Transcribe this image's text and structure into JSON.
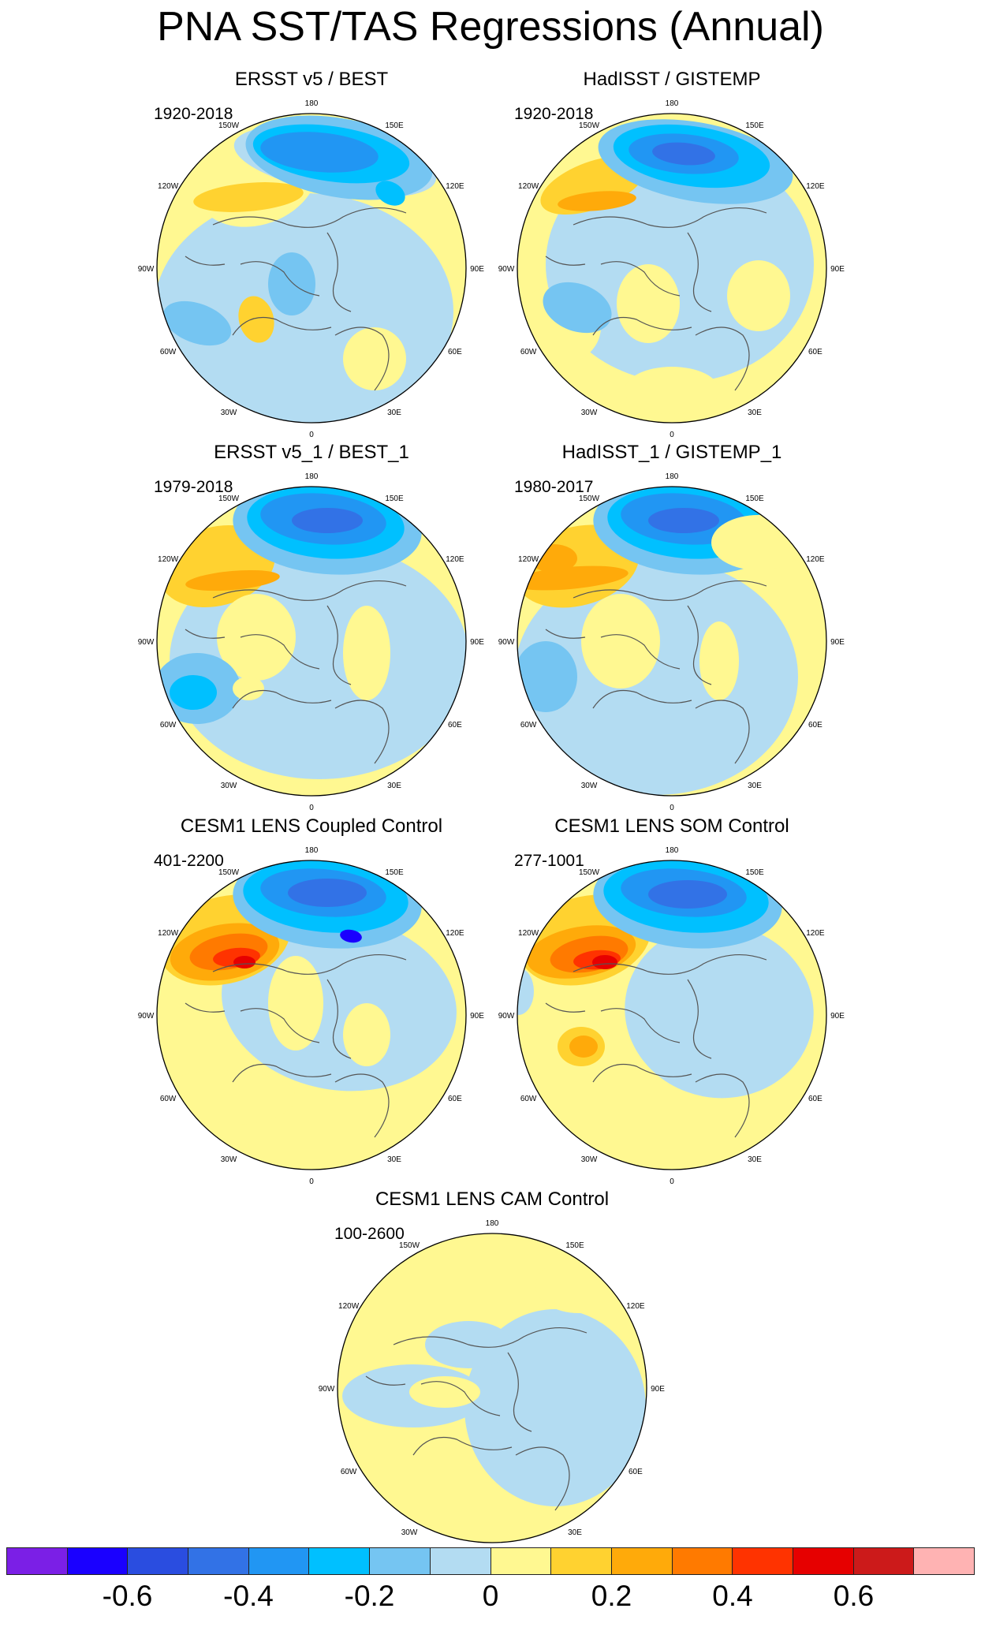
{
  "title": "PNA SST/TAS Regressions (Annual)",
  "panels": [
    {
      "title": "ERSST v5 / BEST",
      "period": "1920-2018",
      "pattern": "obs_early",
      "side": "left"
    },
    {
      "title": "HadISST / GISTEMP",
      "period": "1920-2018",
      "pattern": "obs_early_had",
      "side": "right"
    },
    {
      "title": "ERSST v5_1 / BEST_1",
      "period": "1979-2018",
      "pattern": "obs_late",
      "side": "left"
    },
    {
      "title": "HadISST_1 / GISTEMP_1",
      "period": "1980-2017",
      "pattern": "obs_late_had",
      "side": "right"
    },
    {
      "title": "CESM1 LENS Coupled Control",
      "period": "401-2200",
      "pattern": "coupled",
      "side": "left"
    },
    {
      "title": "CESM1 LENS SOM Control",
      "period": "277-1001",
      "pattern": "som",
      "side": "right"
    },
    {
      "title": "CESM1 LENS CAM Control",
      "period": "100-2600",
      "pattern": "cam",
      "side": "center"
    }
  ],
  "lon_labels": [
    "180",
    "150E",
    "120E",
    "90E",
    "60E",
    "30E",
    "0",
    "30W",
    "60W",
    "90W",
    "120W",
    "150W"
  ],
  "colorbar": {
    "colors": [
      "#7b1fe6",
      "#1a00ff",
      "#2a4de0",
      "#3272e6",
      "#2196f3",
      "#00c0ff",
      "#75c5f2",
      "#b3dcf2",
      "#fff891",
      "#ffd230",
      "#ffaa0a",
      "#ff7a00",
      "#ff3300",
      "#e60000",
      "#cc1a1a",
      "#ffb3b3"
    ],
    "tick_labels": [
      "-0.6",
      "-0.4",
      "-0.2",
      "0",
      "0.2",
      "0.4",
      "0.6"
    ],
    "tick_box_index": [
      2,
      4,
      6,
      8,
      10,
      12,
      14
    ]
  },
  "fill_colors": {
    "neg6": "#1a00ff",
    "neg5": "#2a4de0",
    "neg4": "#3272e6",
    "neg3": "#2196f3",
    "neg2": "#00c0ff",
    "neg1": "#75c5f2",
    "neg0": "#b3dcf2",
    "pos0": "#fff891",
    "pos1": "#ffd230",
    "pos2": "#ffaa0a",
    "pos3": "#ff7a00",
    "pos4": "#ff3300",
    "pos5": "#e60000",
    "pos6": "#cc1a1a"
  }
}
